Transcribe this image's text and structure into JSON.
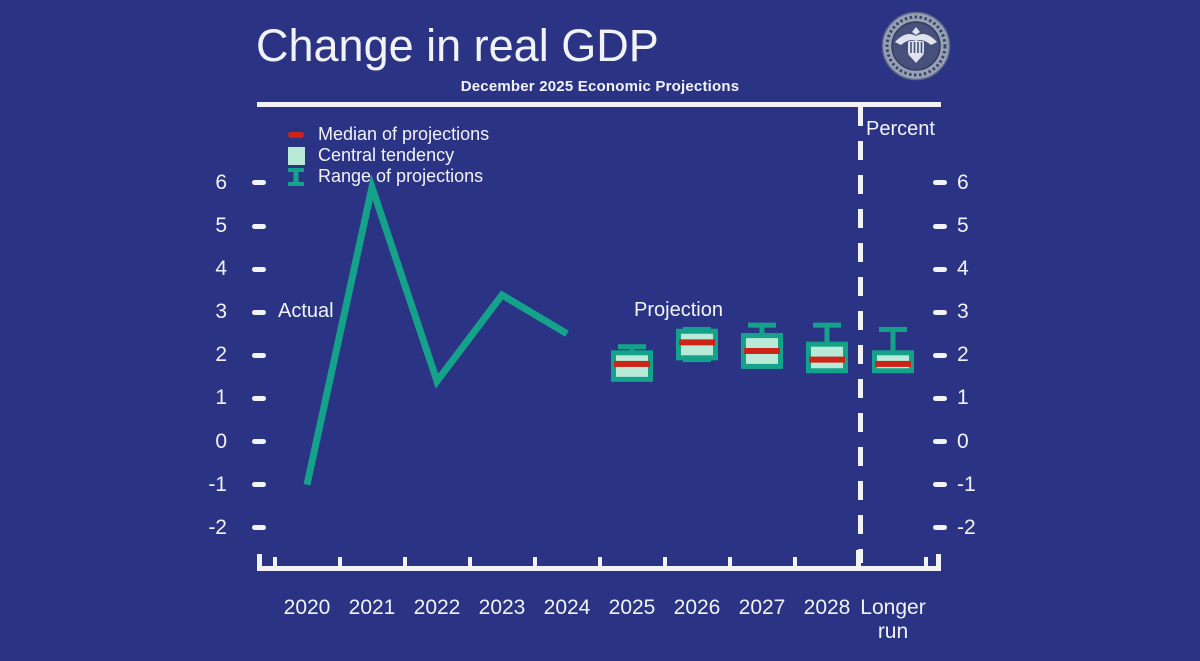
{
  "header": {
    "title": "Change in real GDP",
    "subtitle": "December 2025 Economic Projections",
    "logo": "federal-reserve-seal"
  },
  "legend": {
    "items": [
      {
        "icon": "median-dash-icon",
        "label": "Median of projections"
      },
      {
        "icon": "central-tendency-box-icon",
        "label": "Central tendency"
      },
      {
        "icon": "range-ibeam-icon",
        "label": "Range of projections"
      }
    ]
  },
  "annotations": {
    "actual_label": "Actual",
    "projection_label": "Projection",
    "unit_label": "Percent"
  },
  "axis": {
    "y_ticks": [
      6,
      5,
      4,
      3,
      2,
      1,
      0,
      -1,
      -2
    ],
    "x_labels": [
      "2020",
      "2021",
      "2022",
      "2023",
      "2024",
      "2025",
      "2026",
      "2027",
      "2028",
      "Longer run"
    ]
  },
  "chart_data": {
    "type": "line+boxplot",
    "title": "Change in real GDP",
    "subtitle": "December 2025 Economic Projections",
    "ylabel": "Percent",
    "ylim": [
      -2.5,
      6.5
    ],
    "grid": false,
    "legend_position": "top-left",
    "actual_series": {
      "name": "Actual",
      "x": [
        "2020",
        "2021",
        "2022",
        "2023",
        "2024"
      ],
      "values": [
        -1.0,
        5.9,
        1.4,
        3.4,
        2.5
      ]
    },
    "projections": [
      {
        "x": "2025",
        "median": 1.8,
        "central_tendency": [
          1.5,
          2.0
        ],
        "range": [
          1.5,
          2.2
        ]
      },
      {
        "x": "2026",
        "median": 2.3,
        "central_tendency": [
          2.0,
          2.5
        ],
        "range": [
          1.9,
          2.6
        ]
      },
      {
        "x": "2027",
        "median": 2.1,
        "central_tendency": [
          1.8,
          2.4
        ],
        "range": [
          1.8,
          2.7
        ]
      },
      {
        "x": "2028",
        "median": 1.9,
        "central_tendency": [
          1.7,
          2.2
        ],
        "range": [
          1.7,
          2.7
        ]
      },
      {
        "x": "Longer run",
        "median": 1.8,
        "central_tendency": [
          1.7,
          2.0
        ],
        "range": [
          1.7,
          2.6
        ]
      }
    ],
    "colors": {
      "background": "#2b3484",
      "text": "#f2f3f6",
      "actual_line": "#15a28b",
      "median": "#cc2418",
      "central_tendency_fill": "#b9ead8",
      "central_tendency_border": "#15a28b",
      "range": "#15a28b"
    }
  }
}
